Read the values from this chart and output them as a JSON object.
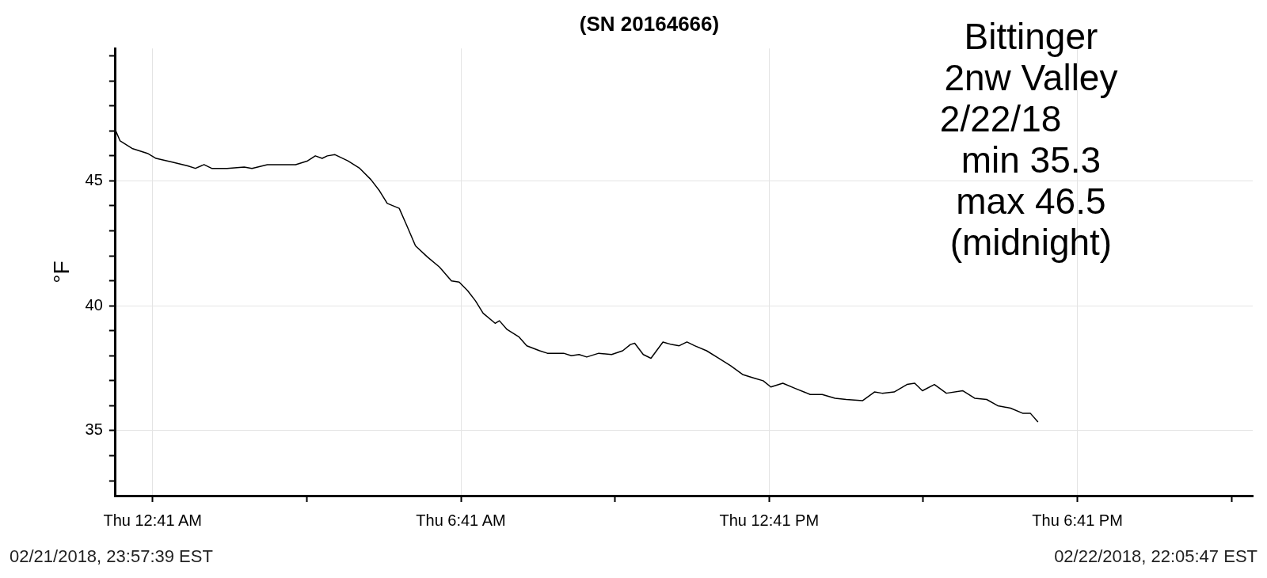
{
  "chart_data": {
    "type": "line",
    "title": "(SN 20164666)",
    "ylabel": "°F",
    "color": "#000000",
    "annotations": [
      "Bittinger\n2nw Valley\n2/22/18      \nmin 35.3\nmax 46.5\n(midnight)",
      "02/21/2018, 23:57:39 EST",
      "02/22/2018, 22:05:47 EST"
    ],
    "x": [
      "2018-02-21T23:58",
      "2018-02-22T00:03",
      "2018-02-22T00:17",
      "2018-02-22T00:35",
      "2018-02-22T00:45",
      "2018-02-22T01:04",
      "2018-02-22T01:22",
      "2018-02-22T01:31",
      "2018-02-22T01:41",
      "2018-02-22T01:50",
      "2018-02-22T02:08",
      "2018-02-22T02:28",
      "2018-02-22T02:37",
      "2018-02-22T02:55",
      "2018-02-22T03:28",
      "2018-02-22T03:42",
      "2018-02-22T03:51",
      "2018-02-22T03:59",
      "2018-02-22T04:05",
      "2018-02-22T04:14",
      "2018-02-22T04:29",
      "2018-02-22T04:43",
      "2018-02-22T04:56",
      "2018-02-22T05:06",
      "2018-02-22T05:15",
      "2018-02-22T05:29",
      "2018-02-22T05:38",
      "2018-02-22T05:48",
      "2018-02-22T06:02",
      "2018-02-22T06:16",
      "2018-02-22T06:30",
      "2018-02-22T06:39",
      "2018-02-22T06:49",
      "2018-02-22T06:58",
      "2018-02-22T07:07",
      "2018-02-22T07:21",
      "2018-02-22T07:26",
      "2018-02-22T07:35",
      "2018-02-22T07:49",
      "2018-02-22T07:58",
      "2018-02-22T08:13",
      "2018-02-22T08:22",
      "2018-02-22T08:31",
      "2018-02-22T08:41",
      "2018-02-22T08:50",
      "2018-02-22T08:59",
      "2018-02-22T09:08",
      "2018-02-22T09:22",
      "2018-02-22T09:37",
      "2018-02-22T09:50",
      "2018-02-22T09:59",
      "2018-02-22T10:04",
      "2018-02-22T10:14",
      "2018-02-22T10:23",
      "2018-02-22T10:37",
      "2018-02-22T10:47",
      "2018-02-22T10:56",
      "2018-02-22T11:05",
      "2018-02-22T11:14",
      "2018-02-22T11:28",
      "2018-02-22T11:42",
      "2018-02-22T11:56",
      "2018-02-22T12:10",
      "2018-02-22T12:24",
      "2018-02-22T12:34",
      "2018-02-22T12:43",
      "2018-02-22T12:57",
      "2018-02-22T13:11",
      "2018-02-22T13:29",
      "2018-02-22T13:43",
      "2018-02-22T13:58",
      "2018-02-22T14:11",
      "2018-02-22T14:30",
      "2018-02-22T14:44",
      "2018-02-22T14:53",
      "2018-02-22T15:07",
      "2018-02-22T15:22",
      "2018-02-22T15:31",
      "2018-02-22T15:40",
      "2018-02-22T15:54",
      "2018-02-22T16:08",
      "2018-02-22T16:27",
      "2018-02-22T16:41",
      "2018-02-22T16:55",
      "2018-02-22T17:08",
      "2018-02-22T17:23",
      "2018-02-22T17:37",
      "2018-02-22T17:46",
      "2018-02-22T17:55"
    ],
    "values": [
      47.0,
      46.6,
      46.3,
      46.1,
      45.9,
      45.75,
      45.6,
      45.5,
      45.65,
      45.5,
      45.5,
      45.55,
      45.5,
      45.65,
      45.65,
      45.8,
      46.0,
      45.9,
      46.0,
      46.05,
      45.8,
      45.5,
      45.05,
      44.6,
      44.1,
      43.9,
      43.2,
      42.4,
      41.95,
      41.55,
      41.0,
      40.95,
      40.6,
      40.2,
      39.7,
      39.3,
      39.4,
      39.05,
      38.75,
      38.4,
      38.2,
      38.1,
      38.1,
      38.1,
      38.0,
      38.05,
      37.95,
      38.1,
      38.05,
      38.2,
      38.45,
      38.5,
      38.05,
      37.9,
      38.55,
      38.45,
      38.4,
      38.55,
      38.4,
      38.2,
      37.9,
      37.6,
      37.25,
      37.1,
      37.0,
      36.75,
      36.9,
      36.7,
      36.45,
      36.45,
      36.3,
      36.25,
      36.2,
      36.55,
      36.5,
      36.55,
      36.85,
      36.9,
      36.6,
      36.85,
      36.5,
      36.6,
      36.3,
      36.25,
      36.0,
      35.9,
      35.7,
      35.7,
      35.35
    ],
    "xlim": [
      "2018-02-21T23:57:39",
      "2018-02-22T22:05:47"
    ],
    "xticks": [
      {
        "value": "2018-02-22T00:41",
        "label": "Thu 12:41 AM"
      },
      {
        "value": "2018-02-22T03:41",
        "label": null
      },
      {
        "value": "2018-02-22T06:41",
        "label": "Thu 6:41 AM"
      },
      {
        "value": "2018-02-22T09:41",
        "label": null
      },
      {
        "value": "2018-02-22T12:41",
        "label": "Thu 12:41 PM"
      },
      {
        "value": "2018-02-22T15:41",
        "label": null
      },
      {
        "value": "2018-02-22T18:41",
        "label": "Thu 6:41 PM"
      },
      {
        "value": "2018-02-22T21:41",
        "label": null
      }
    ],
    "ylim": [
      32.4,
      50.3
    ],
    "yticks": [
      {
        "value": 33,
        "label": null
      },
      {
        "value": 34,
        "label": null
      },
      35,
      {
        "value": 36,
        "label": null
      },
      {
        "value": 37,
        "label": null
      },
      {
        "value": 38,
        "label": null
      },
      {
        "value": 39,
        "label": null
      },
      40,
      {
        "value": 41,
        "label": null
      },
      {
        "value": 42,
        "label": null
      },
      {
        "value": 43,
        "label": null
      },
      {
        "value": 44,
        "label": null
      },
      45,
      {
        "value": 46,
        "label": null
      },
      {
        "value": 47,
        "label": null
      },
      {
        "value": 48,
        "label": null
      },
      {
        "value": 49,
        "label": null
      },
      {
        "value": 50,
        "label": null
      }
    ],
    "grid": true,
    "legend": false,
    "marker": "none",
    "line_style": "solid"
  }
}
